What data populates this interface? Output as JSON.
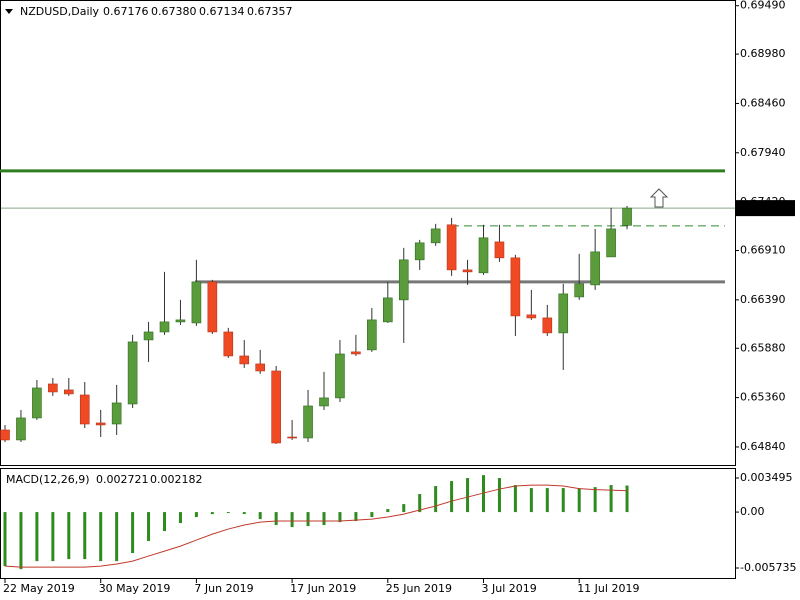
{
  "chart_data": [
    {
      "type": "candlestick",
      "title": "NZDUSD,Daily",
      "header_labels": [
        "0.67176",
        "0.67380",
        "0.67134",
        "0.67357"
      ],
      "categories": [
        "22 May 2019",
        null,
        null,
        null,
        null,
        null,
        "30 May 2019",
        null,
        null,
        null,
        null,
        null,
        "7 Jun 2019",
        null,
        null,
        null,
        null,
        null,
        "17 Jun 2019",
        null,
        null,
        null,
        null,
        null,
        "25 Jun 2019",
        null,
        null,
        null,
        null,
        null,
        "3 Jul 2019",
        null,
        null,
        null,
        null,
        null,
        "11 Jul 2019",
        null,
        null,
        null
      ],
      "open": [
        0.65019,
        0.64914,
        0.65146,
        0.65504,
        0.65441,
        0.65388,
        0.65093,
        0.65082,
        0.65293,
        0.65968,
        0.66052,
        0.66158,
        0.66147,
        0.6658,
        0.66052,
        0.65799,
        0.65715,
        0.65641,
        0.64945,
        0.64935,
        0.65272,
        0.65357,
        0.65842,
        0.65863,
        0.66158,
        0.6639,
        0.66812,
        0.66991,
        0.67181,
        0.66706,
        0.66675,
        0.67001,
        0.66833,
        0.66232,
        0.662,
        0.66042,
        0.66421,
        0.66548,
        0.66843,
        0.67176
      ],
      "high": [
        0.65072,
        0.6523,
        0.65546,
        0.65567,
        0.65567,
        0.65525,
        0.6523,
        0.65494,
        0.66021,
        0.66158,
        0.66685,
        0.6639,
        0.66812,
        0.66601,
        0.66095,
        0.65968,
        0.65863,
        0.65694,
        0.65125,
        0.65441,
        0.65631,
        0.65968,
        0.66021,
        0.66305,
        0.6658,
        0.66938,
        0.67022,
        0.67191,
        0.67254,
        0.66812,
        0.67181,
        0.67181,
        0.66864,
        0.66495,
        0.66337,
        0.66559,
        0.66875,
        0.67138,
        0.6736,
        0.6738
      ],
      "low": [
        0.64893,
        0.64893,
        0.65125,
        0.65378,
        0.65378,
        0.6504,
        0.64945,
        0.64966,
        0.65251,
        0.65736,
        0.66021,
        0.66126,
        0.66116,
        0.66031,
        0.65778,
        0.65673,
        0.6561,
        0.64872,
        0.64914,
        0.64893,
        0.6523,
        0.65314,
        0.65799,
        0.65842,
        0.66147,
        0.65936,
        0.66706,
        0.66959,
        0.66643,
        0.66548,
        0.66653,
        0.66791,
        0.6601,
        0.66179,
        0.6601,
        0.65652,
        0.6639,
        0.66495,
        0.66843,
        0.67134
      ],
      "close": [
        0.64914,
        0.65146,
        0.65462,
        0.6542,
        0.65399,
        0.65082,
        0.65072,
        0.65304,
        0.65947,
        0.66052,
        0.66158,
        0.66179,
        0.6658,
        0.66052,
        0.65799,
        0.65715,
        0.65641,
        0.64882,
        0.64935,
        0.65272,
        0.65357,
        0.6582,
        0.6582,
        0.66179,
        0.66411,
        0.66812,
        0.66991,
        0.67138,
        0.66706,
        0.66685,
        0.67044,
        0.66833,
        0.66221,
        0.662,
        0.66042,
        0.66453,
        0.66559,
        0.66896,
        0.67138,
        0.67357
      ],
      "up_color": "#5a9b3c",
      "down_color": "#f04a25",
      "ylim": [
        0.6465,
        0.6955
      ],
      "yticks": [
        {
          "value": 0.6949,
          "label": "0.69490"
        },
        {
          "value": 0.6898,
          "label": "0.68980"
        },
        {
          "value": 0.6846,
          "label": "0.68460"
        },
        {
          "value": 0.6794,
          "label": "0.67940"
        },
        {
          "value": 0.6742,
          "label": "0.67420"
        },
        {
          "value": 0.6691,
          "label": "0.66910"
        },
        {
          "value": 0.6639,
          "label": "0.66390"
        },
        {
          "value": 0.6588,
          "label": "0.65880"
        },
        {
          "value": 0.6536,
          "label": "0.65360"
        },
        {
          "value": 0.6484,
          "label": "0.64840"
        }
      ],
      "levels": [
        {
          "value": 0.6775,
          "color": "#2e7d1f",
          "dashed": false
        },
        {
          "value": 0.6658,
          "color": "#777777",
          "dashed": false
        },
        {
          "value": 0.6717,
          "color": "#2e8b2e",
          "dashed": true
        }
      ],
      "price_line_color": "#8aa88a"
    },
    {
      "type": "macd",
      "title": "MACD(12,26,9)",
      "histogram": [
        -0.00554,
        -0.00585,
        -0.00503,
        -0.00503,
        -0.00482,
        -0.00482,
        -0.00503,
        -0.00503,
        -0.0042,
        -0.00297,
        -0.00195,
        -0.00113,
        -0.00051,
        -0.00021,
        -0.0001,
        -0.0002,
        -0.00072,
        -0.00133,
        -0.00154,
        -0.00144,
        -0.00133,
        -0.00103,
        -0.00092,
        -0.00051,
        0.00031,
        0.00082,
        0.00185,
        0.00267,
        0.00318,
        0.00349,
        0.00379,
        0.00349,
        0.00277,
        0.00246,
        0.00246,
        0.00246,
        0.00246,
        0.00256,
        0.00277,
        0.002721
      ],
      "signal": [
        -0.00554,
        -0.00564,
        -0.00564,
        -0.00564,
        -0.00564,
        -0.00564,
        -0.00554,
        -0.00533,
        -0.00503,
        -0.00451,
        -0.004,
        -0.00349,
        -0.00287,
        -0.00226,
        -0.00174,
        -0.00133,
        -0.00103,
        -0.00092,
        -0.00092,
        -0.00092,
        -0.00092,
        -0.00092,
        -0.00082,
        -0.00072,
        -0.00051,
        -0.00021,
        0.00021,
        0.00062,
        0.00113,
        0.00154,
        0.00195,
        0.00236,
        0.00267,
        0.00277,
        0.00277,
        0.00267,
        0.0024,
        0.0023,
        0.00225,
        0.002182
      ],
      "histogram_color": "#2e8b1e",
      "signal_color": "#c0392b",
      "ylim": [
        -0.00676,
        0.00452
      ],
      "yticks": [
        0.003495,
        {
          "value": 0,
          "label": "0.00"
        },
        -0.005735
      ]
    }
  ]
}
